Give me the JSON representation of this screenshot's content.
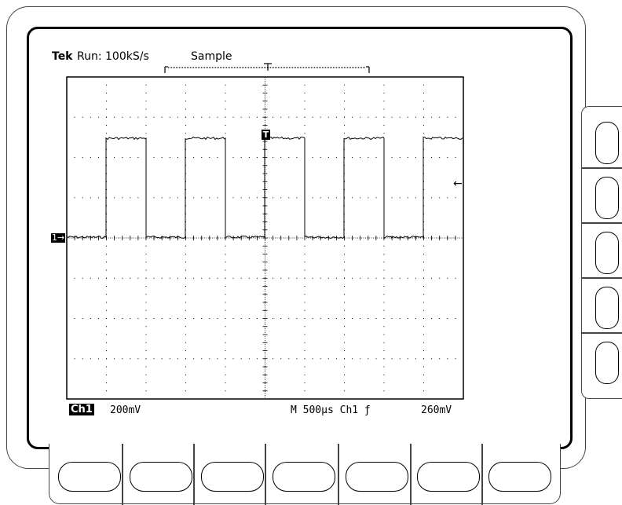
{
  "header": {
    "brand": "Tek",
    "run_status": "Run: 100kS/s",
    "acquisition_mode": "Sample"
  },
  "channel": {
    "badge": "Ch1",
    "scale": "200mV",
    "ground_marker": "1→"
  },
  "timebase": {
    "readout": "M 500µs Ch1 ƒ",
    "trigger_level": "260mV"
  },
  "trigger": {
    "marker": "T",
    "level_arrow": "←"
  },
  "side_menu": {
    "button_count": 5
  },
  "bottom_menu": {
    "button_count": 7
  }
}
